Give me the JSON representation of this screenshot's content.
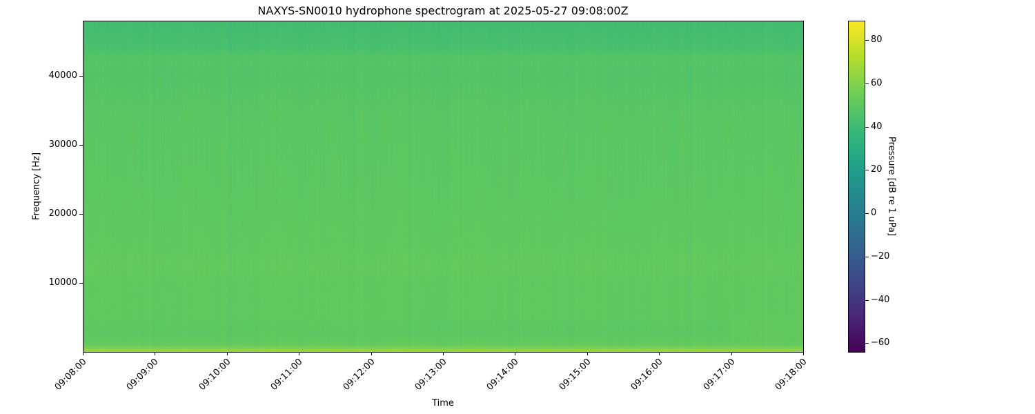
{
  "chart_data": {
    "type": "heatmap",
    "title": "NAXYS-SN0010 hydrophone spectrogram at 2025-05-27 09:08:00Z",
    "xlabel": "Time",
    "ylabel": "Frequency [Hz]",
    "colorbar_label": "Pressure [dB re 1 uPa]",
    "colormap": "viridis",
    "xlim": [
      "09:08:00",
      "09:18:00"
    ],
    "ylim": [
      0,
      48000
    ],
    "clim": [
      -64,
      89
    ],
    "x_ticks": [
      "09:08:00",
      "09:09:00",
      "09:10:00",
      "09:11:00",
      "09:12:00",
      "09:13:00",
      "09:14:00",
      "09:15:00",
      "09:16:00",
      "09:17:00",
      "09:18:00"
    ],
    "y_ticks": [
      10000,
      20000,
      30000,
      40000
    ],
    "y_tick_labels": [
      "10000",
      "20000",
      "30000",
      "40000"
    ],
    "colorbar_ticks": [
      80,
      60,
      40,
      20,
      0,
      -20,
      -40,
      -60
    ],
    "colorbar_tick_labels": [
      "80",
      "60",
      "40",
      "20",
      "0",
      "−20",
      "−40",
      "−60"
    ],
    "frequency_profile_db": {
      "frequency_hz": [
        0,
        500,
        1000,
        3000,
        5000,
        10000,
        12500,
        15000,
        25000,
        35000,
        40000,
        42500,
        44000,
        48000
      ],
      "level_db": [
        64,
        60,
        52,
        50,
        51,
        51,
        52,
        51,
        50,
        49,
        47,
        48,
        44,
        42
      ]
    },
    "features": [
      {
        "time_start": "09:17:00",
        "time_end": "09:18:00",
        "freq_range_hz": [
          2000,
          5000
        ],
        "level_db": 55
      },
      {
        "time_start": "09:11:00",
        "time_end": "09:12:00",
        "freq_range_hz": [
          3000,
          8000
        ],
        "level_db": 53
      }
    ],
    "grid": false
  }
}
